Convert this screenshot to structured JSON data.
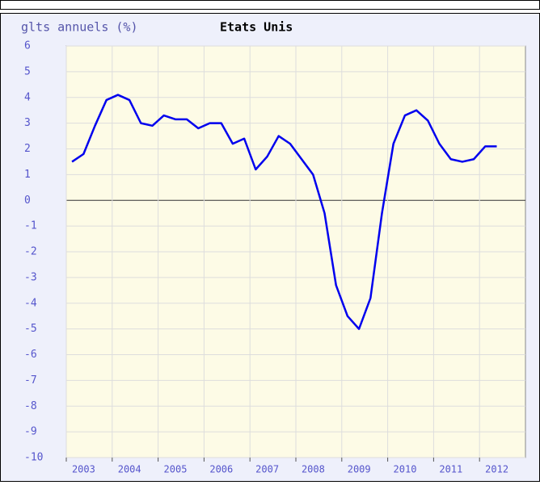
{
  "chart_data": {
    "type": "line",
    "title": "glts annuels (%)",
    "subtitle": "Etats Unis",
    "x": [
      2003.125,
      2003.375,
      2003.625,
      2003.875,
      2004.125,
      2004.375,
      2004.625,
      2004.875,
      2005.125,
      2005.375,
      2005.625,
      2005.875,
      2006.125,
      2006.375,
      2006.625,
      2006.875,
      2007.125,
      2007.375,
      2007.625,
      2007.875,
      2008.125,
      2008.375,
      2008.625,
      2008.875,
      2009.125,
      2009.375,
      2009.625,
      2009.875,
      2010.125,
      2010.375,
      2010.625,
      2010.875,
      2011.125,
      2011.375,
      2011.625,
      2011.875,
      2012.125,
      2012.375
    ],
    "series": [
      {
        "name": "Etats Unis",
        "color": "#0000ee",
        "values": [
          1.5,
          1.8,
          2.9,
          3.9,
          4.1,
          3.9,
          3.0,
          2.9,
          3.3,
          3.15,
          3.15,
          2.8,
          3.0,
          3.0,
          2.2,
          2.4,
          1.2,
          1.7,
          2.5,
          2.2,
          1.6,
          1.0,
          -0.5,
          -3.3,
          -4.5,
          -5.0,
          -3.8,
          -0.5,
          2.2,
          3.3,
          3.5,
          3.1,
          2.2,
          1.6,
          1.5,
          1.6,
          2.1,
          2.1
        ]
      }
    ],
    "xlim": [
      2003,
      2013
    ],
    "xticks": [
      {
        "value": 2003,
        "label": "2003"
      },
      {
        "value": 2004,
        "label": "2004"
      },
      {
        "value": 2005,
        "label": "2005"
      },
      {
        "value": 2006,
        "label": "2006"
      },
      {
        "value": 2007,
        "label": "2007"
      },
      {
        "value": 2008,
        "label": "2008"
      },
      {
        "value": 2009,
        "label": "2009"
      },
      {
        "value": 2010,
        "label": "2010"
      },
      {
        "value": 2011,
        "label": "2011"
      },
      {
        "value": 2012,
        "label": "2012"
      }
    ],
    "ylim": [
      -10,
      6
    ],
    "yticks": [
      -10,
      -9,
      -8,
      -7,
      -6,
      -5,
      -4,
      -3,
      -2,
      -1,
      0,
      1,
      2,
      3,
      4,
      5,
      6
    ],
    "grid": true
  }
}
